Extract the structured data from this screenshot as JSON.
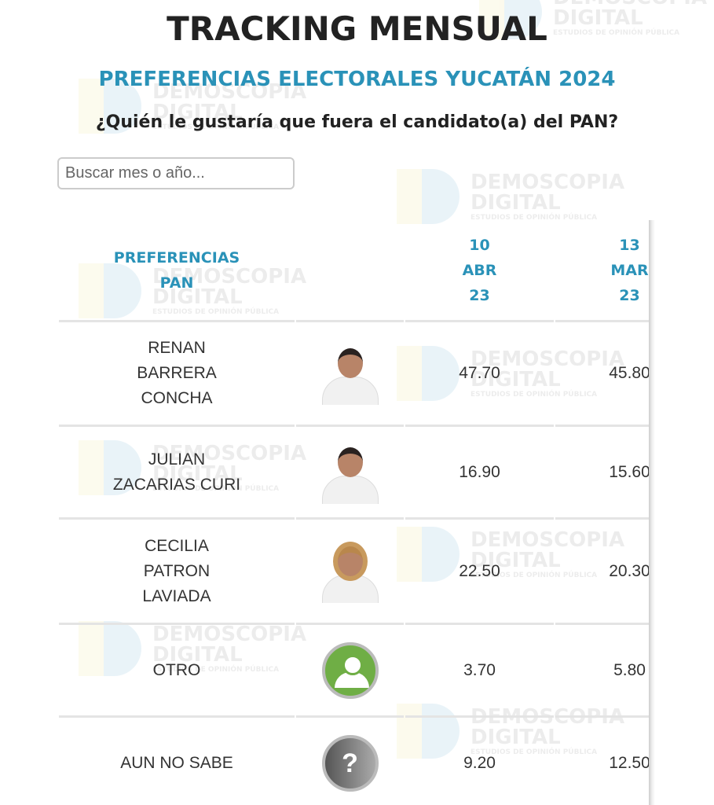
{
  "header": {
    "title": "TRACKING MENSUAL",
    "subtitle": "PREFERENCIAS ELECTORALES YUCATÁN 2024",
    "question": "¿Quién le gustaría que fuera el candidato(a) del PAN?"
  },
  "search": {
    "placeholder": "Buscar mes o año...",
    "value": ""
  },
  "watermark": {
    "line1": "DEMOSCOPIA",
    "line2": "DIGITAL",
    "line3": "ESTUDIOS DE OPINIÓN PÚBLICA"
  },
  "table": {
    "header": {
      "label_line1": "PREFERENCIAS",
      "label_line2": "PAN",
      "dates": [
        {
          "day": "10",
          "month": "ABR",
          "year": "23"
        },
        {
          "day": "13",
          "month": "MAR",
          "year": "23"
        }
      ]
    },
    "rows": [
      {
        "name": "RENAN BARRERA CONCHA",
        "image": "candidate-photo",
        "values": [
          "47.70",
          "45.80"
        ]
      },
      {
        "name": "JULIAN ZACARIAS CURI",
        "image": "candidate-photo",
        "values": [
          "16.90",
          "15.60"
        ]
      },
      {
        "name": "CECILIA PATRON LAVIADA",
        "image": "candidate-photo",
        "values": [
          "22.50",
          "20.30"
        ]
      },
      {
        "name": "OTRO",
        "image": "user-icon",
        "values": [
          "3.70",
          "5.80"
        ]
      },
      {
        "name": "AUN NO SABE",
        "image": "question-icon",
        "icon_text": "?",
        "values": [
          "9.20",
          "12.50"
        ]
      }
    ]
  },
  "colors": {
    "accent": "#2a92b8",
    "otro_icon": "#6fae45"
  }
}
